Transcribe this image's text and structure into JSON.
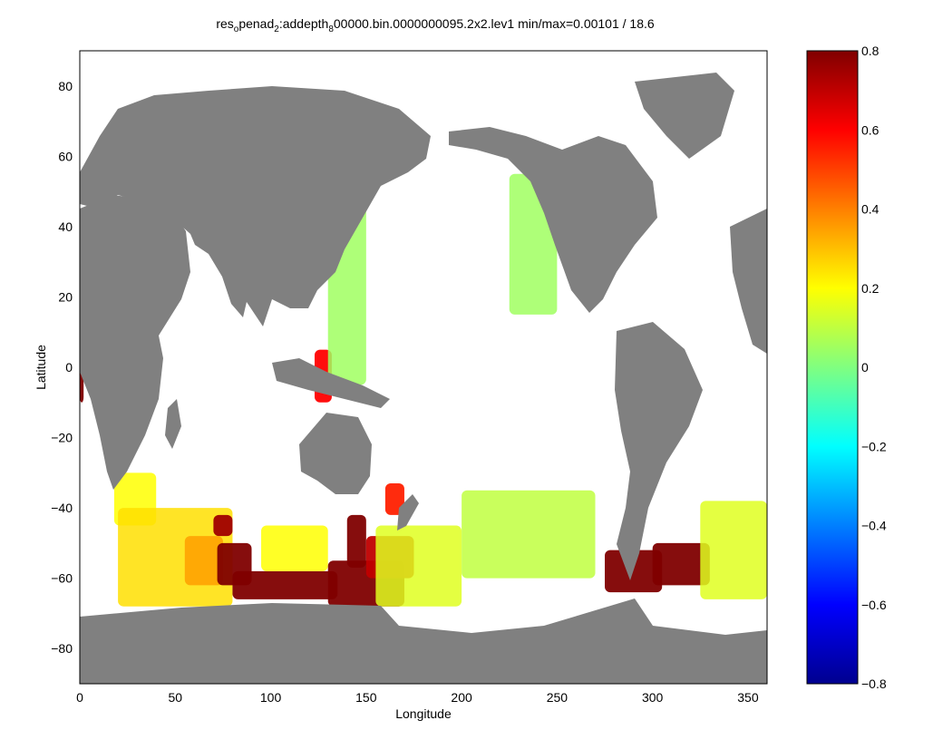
{
  "chart_data": {
    "type": "heatmap",
    "title_parts": {
      "t1": "res",
      "s1": "o",
      "t2": "penad",
      "s2": "2",
      "t3": ":addepth",
      "s3": "8",
      "t4": "00000.bin.0000000095.2x2.lev1  min/max=0.00101 / 18.6"
    },
    "xlabel": "Longitude",
    "ylabel": "Latitude",
    "xlim": [
      0,
      360
    ],
    "ylim": [
      -90,
      90
    ],
    "xticks": [
      "0",
      "50",
      "100",
      "150",
      "200",
      "250",
      "300",
      "350"
    ],
    "yticks": [
      "80",
      "60",
      "40",
      "20",
      "0",
      "−20",
      "−40",
      "−60",
      "−80"
    ],
    "colorbar": {
      "range": [
        -0.8,
        0.8
      ],
      "ticks": [
        "0.8",
        "0.6",
        "0.4",
        "0.2",
        "0",
        "−0.2",
        "−0.4",
        "−0.6",
        "−0.8"
      ],
      "colormap": "jet"
    },
    "colors": {
      "land": "#808080",
      "nodata": "#ffffff",
      "low": "#8fef8a",
      "mid": "#f4ee45",
      "orange": "#f7a02c",
      "high": "#e81a0c",
      "max": "#870000"
    },
    "regions": [
      {
        "lon": [
          18,
          40
        ],
        "lat": [
          -45,
          -30
        ],
        "value": 0.2
      },
      {
        "lon": [
          20,
          80
        ],
        "lat": [
          -68,
          -40
        ],
        "value": 0.25
      },
      {
        "lon": [
          55,
          75
        ],
        "lat": [
          -62,
          -48
        ],
        "value": 0.35
      },
      {
        "lon": [
          70,
          80
        ],
        "lat": [
          -48,
          -42
        ],
        "value": 0.75
      },
      {
        "lon": [
          72,
          90
        ],
        "lat": [
          -62,
          -50
        ],
        "value": 0.8
      },
      {
        "lon": [
          80,
          135
        ],
        "lat": [
          -66,
          -58
        ],
        "value": 0.8
      },
      {
        "lon": [
          95,
          130
        ],
        "lat": [
          -58,
          -45
        ],
        "value": 0.2
      },
      {
        "lon": [
          130,
          170
        ],
        "lat": [
          -68,
          -55
        ],
        "value": 0.85
      },
      {
        "lon": [
          140,
          150
        ],
        "lat": [
          -57,
          -42
        ],
        "value": 0.8
      },
      {
        "lon": [
          150,
          175
        ],
        "lat": [
          -60,
          -48
        ],
        "value": 0.7
      },
      {
        "lon": [
          155,
          200
        ],
        "lat": [
          -68,
          -45
        ],
        "value": 0.15
      },
      {
        "lon": [
          160,
          170
        ],
        "lat": [
          -42,
          -33
        ],
        "value": 0.55
      },
      {
        "lon": [
          200,
          270
        ],
        "lat": [
          -60,
          -35
        ],
        "value": 0.1
      },
      {
        "lon": [
          275,
          305
        ],
        "lat": [
          -64,
          -52
        ],
        "value": 0.9
      },
      {
        "lon": [
          300,
          330
        ],
        "lat": [
          -62,
          -50
        ],
        "value": 0.85
      },
      {
        "lon": [
          325,
          360
        ],
        "lat": [
          -66,
          -38
        ],
        "value": 0.15
      },
      {
        "lon": [
          123,
          132
        ],
        "lat": [
          -10,
          5
        ],
        "value": 0.6
      },
      {
        "lon": [
          130,
          150
        ],
        "lat": [
          -5,
          50
        ],
        "value": 0.05
      },
      {
        "lon": [
          225,
          250
        ],
        "lat": [
          15,
          55
        ],
        "value": 0.05
      },
      {
        "lon": [
          0,
          2
        ],
        "lat": [
          -10,
          5
        ],
        "value": 0.8
      }
    ]
  }
}
